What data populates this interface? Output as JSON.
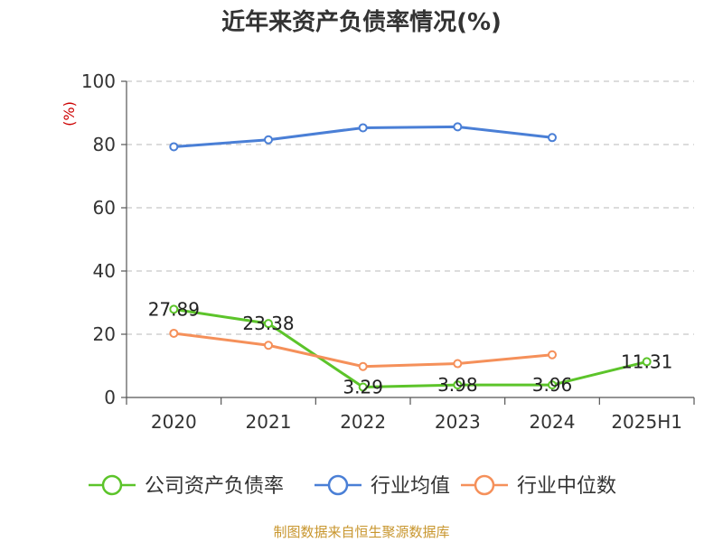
{
  "chart_data": {
    "type": "line",
    "title": "近年来资产负债率情况(%)",
    "unit_label": "(%)",
    "categories": [
      "2020",
      "2021",
      "2022",
      "2023",
      "2024",
      "2025H1"
    ],
    "ylim": [
      0,
      100
    ],
    "yticks": [
      0,
      20,
      40,
      60,
      80,
      100
    ],
    "grid": true,
    "legend_position": "bottom",
    "series": [
      {
        "name": "公司资产负债率",
        "color": "#5cc42a",
        "values": [
          27.89,
          23.38,
          3.29,
          3.98,
          3.96,
          11.31
        ],
        "labels": [
          "27.89",
          "23.38",
          "3.29",
          "3.98",
          "3.96",
          "11.31"
        ]
      },
      {
        "name": "行业均值",
        "color": "#4a7fd6",
        "values": [
          79.3,
          81.5,
          85.3,
          85.6,
          82.2,
          null
        ]
      },
      {
        "name": "行业中位数",
        "color": "#f5905a",
        "values": [
          20.3,
          16.5,
          9.8,
          10.7,
          13.5,
          null
        ]
      }
    ]
  },
  "footer": {
    "source": "制图数据来自恒生聚源数据库"
  }
}
